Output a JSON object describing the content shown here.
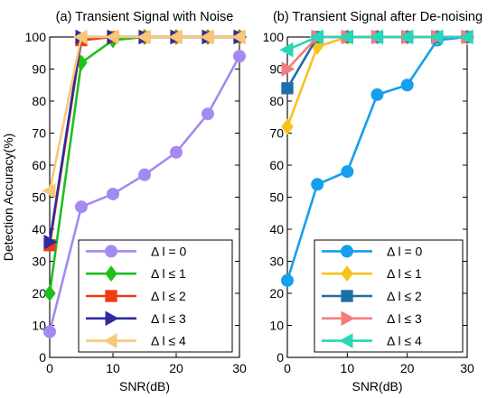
{
  "chart_data": [
    {
      "type": "line",
      "title": "(a) Transient Signal with Noise",
      "xlabel": "SNR(dB)",
      "ylabel": "Detection Accuracy(%)",
      "xlim": [
        0,
        30
      ],
      "ylim": [
        0,
        100
      ],
      "xticks": [
        0,
        10,
        20,
        30
      ],
      "yticks": [
        0,
        10,
        20,
        30,
        40,
        50,
        60,
        70,
        80,
        90,
        100
      ],
      "x": [
        0,
        5,
        10,
        15,
        20,
        25,
        30
      ],
      "grid": false,
      "legend_position": "bottom-right",
      "series": [
        {
          "name": "Δ l = 0",
          "marker": "circle",
          "color": "#a48af0",
          "values": [
            8,
            47,
            51,
            57,
            64,
            76,
            94
          ]
        },
        {
          "name": "Δ l ≤ 1",
          "marker": "diamond",
          "color": "#1ec01e",
          "values": [
            20,
            92,
            99,
            100,
            100,
            100,
            100
          ]
        },
        {
          "name": "Δ l ≤ 2",
          "marker": "square",
          "color": "#f03c14",
          "values": [
            35,
            99,
            100,
            100,
            100,
            100,
            100
          ]
        },
        {
          "name": "Δ l ≤ 3",
          "marker": "triangle-right",
          "color": "#2c2ca0",
          "values": [
            36,
            100,
            100,
            100,
            100,
            100,
            100
          ]
        },
        {
          "name": "Δ l ≤ 4",
          "marker": "triangle-left",
          "color": "#f7c878",
          "values": [
            52,
            100,
            100,
            100,
            100,
            100,
            100
          ]
        }
      ]
    },
    {
      "type": "line",
      "title": "(b) Transient Signal after De-noising",
      "xlabel": "SNR(dB)",
      "ylabel": "",
      "xlim": [
        0,
        30
      ],
      "ylim": [
        0,
        100
      ],
      "xticks": [
        0,
        10,
        20,
        30
      ],
      "yticks": [
        0,
        10,
        20,
        30,
        40,
        50,
        60,
        70,
        80,
        90,
        100
      ],
      "x": [
        0,
        5,
        10,
        15,
        20,
        25,
        30
      ],
      "grid": false,
      "legend_position": "bottom-right",
      "series": [
        {
          "name": "Δ l = 0",
          "marker": "circle",
          "color": "#14a0ec",
          "values": [
            24,
            54,
            58,
            82,
            85,
            99,
            100
          ]
        },
        {
          "name": "Δ l ≤ 1",
          "marker": "diamond",
          "color": "#f6c31a",
          "values": [
            72,
            97,
            100,
            100,
            100,
            100,
            100
          ]
        },
        {
          "name": "Δ l ≤ 2",
          "marker": "square",
          "color": "#1e6ea8",
          "values": [
            84,
            100,
            100,
            100,
            100,
            100,
            100
          ]
        },
        {
          "name": "Δ l ≤ 3",
          "marker": "triangle-right",
          "color": "#f47c7c",
          "values": [
            90,
            100,
            100,
            100,
            100,
            100,
            100
          ]
        },
        {
          "name": "Δ l ≤ 4",
          "marker": "triangle-left",
          "color": "#28d6b8",
          "values": [
            96,
            100,
            100,
            100,
            100,
            100,
            100
          ]
        }
      ]
    }
  ]
}
